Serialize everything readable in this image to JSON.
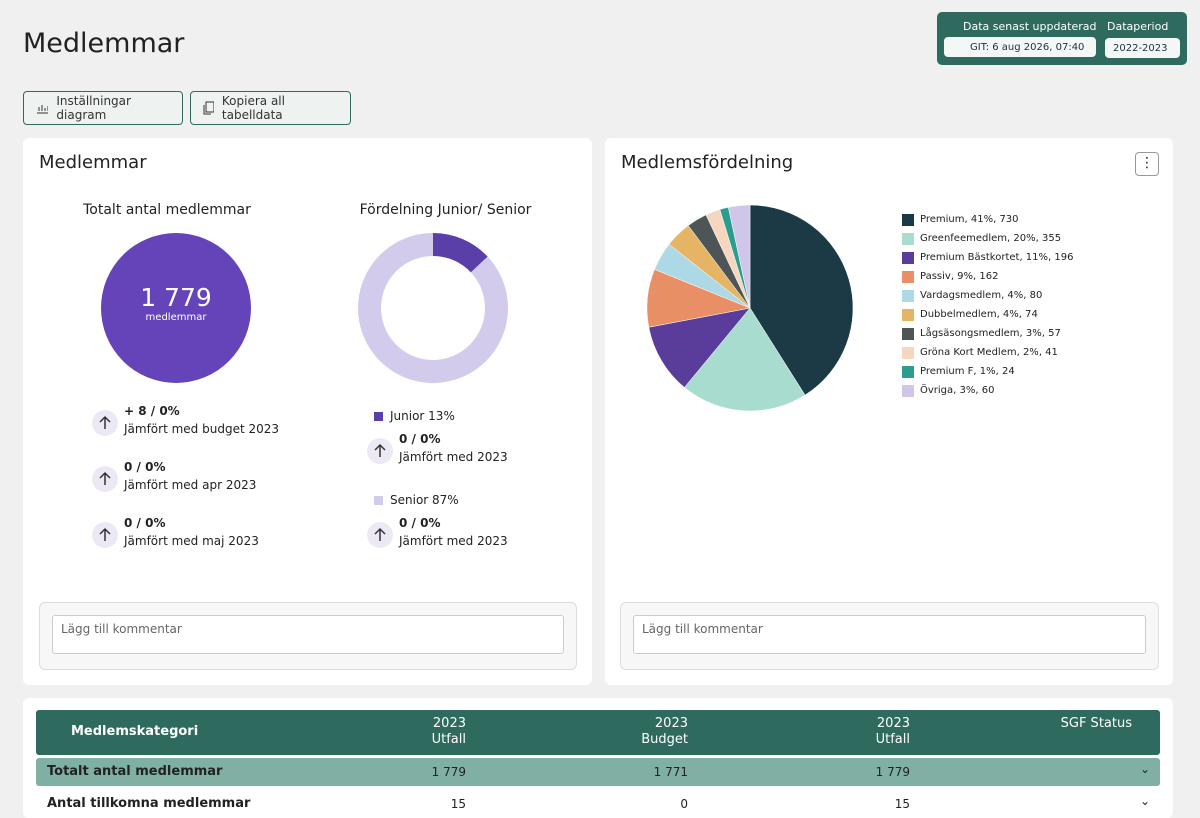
{
  "header": {
    "title": "Medlemmar",
    "update_label": "Data senast uppdaterad",
    "update_value": "GIT: 6 aug 2026, 07:40",
    "period_label": "Dataperiod",
    "period_value": "2022-2023"
  },
  "toolbar": {
    "settings": "Inställningar diagram",
    "copy": "Kopiera all tabelldata"
  },
  "members_card": {
    "title": "Medlemmar",
    "total": {
      "heading": "Totalt antal medlemmar",
      "value": "1 779",
      "unit": "medlemmar",
      "comparisons": [
        {
          "change": "+ 8 / 0%",
          "text": "Jämfört med budget 2023"
        },
        {
          "change": "0 / 0%",
          "text": "Jämfört med apr 2023"
        },
        {
          "change": "0 / 0%",
          "text": "Jämfört med maj 2023"
        }
      ]
    },
    "distribution_comparisons": [
      {
        "change": "0 / 0%",
        "text": "Jämfört med 2023"
      },
      {
        "change": "0 / 0%",
        "text": "Jämfört med 2023"
      }
    ],
    "comment_placeholder": "Lägg till kommentar"
  },
  "distribution_card": {
    "comment_placeholder": "Lägg till kommentar"
  },
  "chart_data": [
    {
      "type": "donut",
      "title": "Fördelning Junior/ Senior",
      "categories": [
        "Junior 13%",
        "Senior 87%"
      ],
      "values": [
        13,
        87
      ],
      "colors": [
        "#5b3fa8",
        "#d3cbec"
      ]
    },
    {
      "type": "pie",
      "title": "Medlemsfördelning",
      "categories": [
        "Premium, 41%, 730",
        "Greenfeemedlem, 20%, 355",
        "Premium Bästkortet, 11%, 196",
        "Passiv, 9%, 162",
        "Vardagsmedlem, 4%, 80",
        "Dubbelmedlem, 4%, 74",
        "Lågsäsongsmedlem, 3%, 57",
        "Gröna Kort Medlem, 2%, 41",
        "Premium F, 1%, 24",
        "Övriga, 3%, 60"
      ],
      "values": [
        730,
        355,
        196,
        162,
        80,
        74,
        57,
        41,
        24,
        60
      ],
      "colors": [
        "#1b3a45",
        "#a8dccf",
        "#5a3d9b",
        "#e98f65",
        "#add8e6",
        "#e6b465",
        "#4d5557",
        "#f5d7bf",
        "#2a9d8f",
        "#cfc6ea"
      ]
    }
  ],
  "table": {
    "columns": [
      [
        "Medlemskategori"
      ],
      [
        "2023",
        "Utfall"
      ],
      [
        "2023",
        "Budget"
      ],
      [
        "2023",
        "Utfall"
      ],
      [
        "SGF Status"
      ]
    ],
    "rows": [
      [
        "Totalt antal medlemmar",
        "1 779",
        "1 771",
        "1 779"
      ],
      [
        "Antal tillkomna medlemmar",
        "15",
        "0",
        "15"
      ]
    ]
  }
}
